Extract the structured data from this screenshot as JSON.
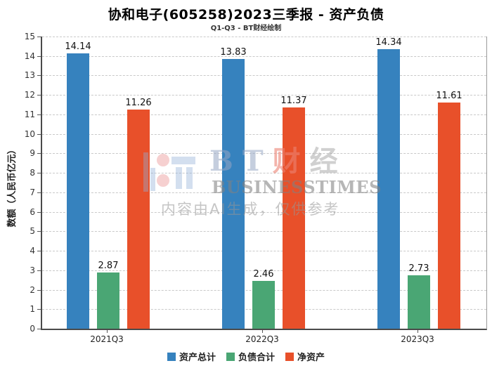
{
  "chart": {
    "title": "协和电子(605258)2023三季报 - 资产负债",
    "subtitle": "Q1-Q3 - BT财经绘制",
    "ylabel": "数额（人民币亿元）"
  },
  "chart_data": {
    "type": "bar",
    "categories": [
      "2021Q3",
      "2022Q3",
      "2023Q3"
    ],
    "series": [
      {
        "name": "资产总计",
        "color": "#3682be",
        "values": [
          14.14,
          13.83,
          14.34
        ]
      },
      {
        "name": "负债合计",
        "color": "#4aa674",
        "values": [
          2.87,
          2.46,
          2.73
        ]
      },
      {
        "name": "净资产",
        "color": "#e8502a",
        "values": [
          11.26,
          11.37,
          11.61
        ]
      }
    ],
    "title": "协和电子(605258)2023三季报 - 资产负债",
    "subtitle": "Q1-Q3 - BT财经绘制",
    "xlabel": "",
    "ylabel": "数额（人民币亿元）",
    "ylim": [
      0,
      15
    ],
    "ytick_step": 1,
    "grid": "horizontal-dashed",
    "legend_position": "bottom",
    "bar_value_labels": true
  },
  "watermark": {
    "logo_icon": "bt-logo",
    "brand_chars": [
      {
        "ch": "B",
        "color": "rgba(150,165,195,0.55)"
      },
      {
        "ch": "T",
        "color": "rgba(150,165,195,0.55)"
      },
      {
        "ch": "财",
        "color": "rgba(235,130,115,0.60)"
      },
      {
        "ch": "经",
        "color": "rgba(170,170,170,0.55)"
      }
    ],
    "brand_sub": "BUSINESSTIMES",
    "disclaimer": "内容由AI生成，仅供参考"
  },
  "colors": {
    "series_blue": "#3682be",
    "series_green": "#4aa674",
    "series_red": "#e8502a",
    "grid": "#c9c9c9",
    "axis": "#4a4a4a"
  }
}
